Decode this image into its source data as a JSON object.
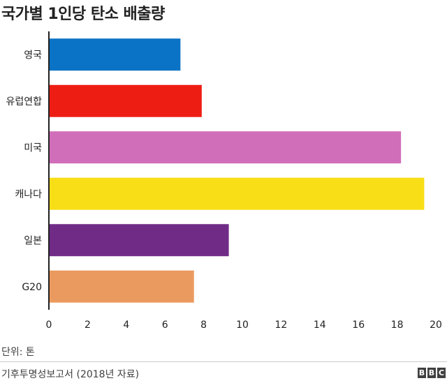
{
  "title": "국가별 1인당 탄소 배출량",
  "chart_data": {
    "type": "bar",
    "orientation": "horizontal",
    "categories": [
      "영국",
      "유럽연합",
      "미국",
      "캐나다",
      "일본",
      "G20"
    ],
    "values": [
      6.8,
      7.9,
      18.2,
      19.4,
      9.3,
      7.5
    ],
    "colors": [
      "#0a73c6",
      "#ee1d14",
      "#d16eb9",
      "#f7de17",
      "#702b87",
      "#eb9a5f"
    ],
    "xlim": [
      0,
      20
    ],
    "xticks": [
      "0",
      "2",
      "4",
      "6",
      "8",
      "10",
      "12",
      "14",
      "16",
      "18",
      "20"
    ],
    "grid": false
  },
  "unit_label": "단위: 톤",
  "source": "기후투명성보고서 (2018년 자료)",
  "logo": {
    "letters": [
      "B",
      "B",
      "C"
    ]
  }
}
